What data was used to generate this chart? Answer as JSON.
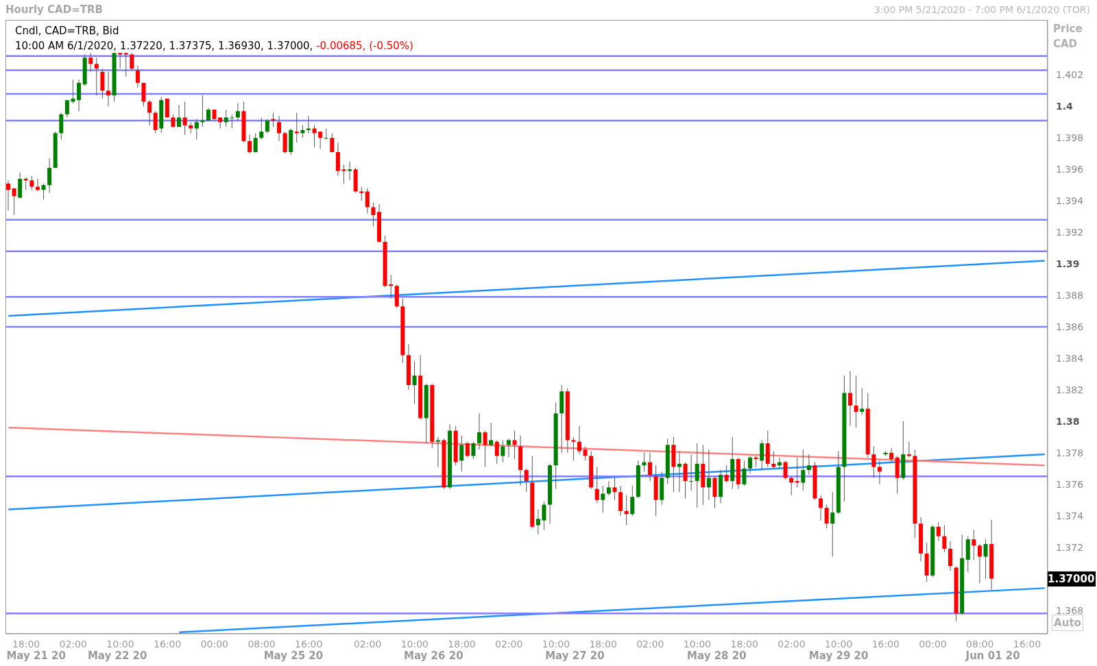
{
  "chart_data": {
    "type": "candlestick",
    "title": "Hourly CAD=TRB",
    "subtitle": "3:00 PM 5/21/2020 - 7:00 PM 6/1/2020 (TOR)",
    "ylabel": "Price CAD",
    "categories": [
      null,
      null,
      null,
      "18:00",
      null,
      null,
      null,
      null,
      null,
      null,
      null,
      "02:00",
      null,
      null,
      null,
      null,
      null,
      null,
      null,
      "10:00",
      null,
      null,
      null,
      null,
      null,
      null,
      null,
      "16:00",
      null,
      null,
      null,
      null,
      null,
      null,
      null,
      "00:00",
      null,
      null,
      null,
      null,
      null,
      null,
      null,
      "08:00",
      null,
      null,
      null,
      null,
      null,
      null,
      null,
      "16:00",
      null,
      null,
      null,
      null,
      null,
      null,
      null,
      null,
      null,
      "02:00",
      null,
      null,
      null,
      null,
      null,
      null,
      null,
      "10:00",
      null,
      null,
      null,
      null,
      null,
      null,
      null,
      "18:00",
      null,
      null,
      null,
      null,
      null,
      null,
      null,
      "02:00",
      null,
      null,
      null,
      null,
      null,
      null,
      null,
      "10:00",
      null,
      null,
      null,
      null,
      null,
      null,
      null,
      "18:00",
      null,
      null,
      null,
      null,
      null,
      null,
      null,
      "02:00",
      null,
      null,
      null,
      null,
      null,
      null,
      null,
      "10:00",
      null,
      null,
      null,
      null,
      null,
      null,
      null,
      "18:00",
      null,
      null,
      null,
      null,
      null,
      null,
      null,
      "02:00",
      null,
      null,
      null,
      null,
      null,
      null,
      null,
      "10:00",
      null,
      null,
      null,
      null,
      null,
      null,
      null,
      "16:00",
      null,
      null,
      null,
      null,
      null,
      null,
      null,
      "00:00",
      null,
      null,
      null,
      null,
      null,
      null,
      null,
      "08:00",
      null,
      null,
      null,
      null,
      null,
      null,
      null,
      "16:00",
      null,
      null,
      null
    ],
    "ohlc": [
      [
        1.3951,
        1.3953,
        1.3934,
        1.3947
      ],
      [
        1.3948,
        1.3948,
        1.3931,
        1.3943
      ],
      [
        1.3942,
        1.3958,
        1.3942,
        1.3954
      ],
      [
        1.3954,
        1.3955,
        1.3947,
        1.3953
      ],
      [
        1.3953,
        1.3956,
        1.3947,
        1.3949
      ],
      [
        1.3949,
        1.3954,
        1.3946,
        1.3947
      ],
      [
        1.3947,
        1.3951,
        1.3941,
        1.395
      ],
      [
        1.395,
        1.3967,
        1.3945,
        1.3961
      ],
      [
        1.3961,
        1.3984,
        1.3961,
        1.3983
      ],
      [
        1.3983,
        1.3996,
        1.3979,
        1.3995
      ],
      [
        1.3995,
        1.4004,
        1.3993,
        1.4004
      ],
      [
        1.4003,
        1.4017,
        1.4002,
        1.4005
      ],
      [
        1.4004,
        1.4017,
        1.3997,
        1.4015
      ],
      [
        1.4014,
        1.4033,
        1.4013,
        1.4031
      ],
      [
        1.4031,
        1.4034,
        1.4022,
        1.4027
      ],
      [
        1.4027,
        1.4031,
        1.4007,
        1.4024
      ],
      [
        1.4022,
        1.4024,
        1.4005,
        1.401
      ],
      [
        1.401,
        1.4022,
        1.4,
        1.4007
      ],
      [
        1.4007,
        1.4034,
        1.4003,
        1.4034
      ],
      [
        1.4034,
        1.4034,
        1.4024,
        1.4033
      ],
      [
        1.4034,
        1.4034,
        1.4019,
        1.4033
      ],
      [
        1.4033,
        1.4034,
        1.4023,
        1.4024
      ],
      [
        1.4023,
        1.4026,
        1.4012,
        1.4015
      ],
      [
        1.4015,
        1.4015,
        1.4,
        1.4003
      ],
      [
        1.4003,
        1.4004,
        1.3988,
        1.3996
      ],
      [
        1.3996,
        1.3997,
        1.3983,
        1.3985
      ],
      [
        1.3986,
        1.4006,
        1.3983,
        1.4004
      ],
      [
        1.4005,
        1.4005,
        1.3993,
        1.3993
      ],
      [
        1.3993,
        1.3995,
        1.3987,
        1.3987
      ],
      [
        1.3987,
        1.4001,
        1.3987,
        1.3993
      ],
      [
        1.3993,
        1.4003,
        1.3982,
        1.3988
      ],
      [
        1.3988,
        1.399,
        1.3983,
        1.3986
      ],
      [
        1.3986,
        1.3992,
        1.3979,
        1.399
      ],
      [
        1.399,
        1.4007,
        1.3987,
        1.3991
      ],
      [
        1.3991,
        1.3999,
        1.3991,
        1.3998
      ],
      [
        1.3998,
        1.3998,
        1.3991,
        1.3992
      ],
      [
        1.3993,
        1.3993,
        1.3986,
        1.399
      ],
      [
        1.399,
        1.3998,
        1.3987,
        1.3993
      ],
      [
        1.3993,
        1.3995,
        1.3986,
        1.3993
      ],
      [
        1.3993,
        1.4002,
        1.3991,
        1.3997
      ],
      [
        1.3997,
        1.4003,
        1.3977,
        1.3978
      ],
      [
        1.3978,
        1.3982,
        1.397,
        1.3971
      ],
      [
        1.3971,
        1.3983,
        1.3971,
        1.398
      ],
      [
        1.398,
        1.3993,
        1.3979,
        1.3984
      ],
      [
        1.3984,
        1.3992,
        1.3983,
        1.3991
      ],
      [
        1.3992,
        1.3996,
        1.3987,
        1.3991
      ],
      [
        1.399,
        1.3994,
        1.3978,
        1.3983
      ],
      [
        1.3983,
        1.3984,
        1.397,
        1.3971
      ],
      [
        1.3971,
        1.3986,
        1.3969,
        1.3985
      ],
      [
        1.3984,
        1.3996,
        1.3977,
        1.3983
      ],
      [
        1.3983,
        1.3988,
        1.398,
        1.3985
      ],
      [
        1.3985,
        1.3994,
        1.3983,
        1.3986
      ],
      [
        1.3986,
        1.3988,
        1.3974,
        1.3983
      ],
      [
        1.3984,
        1.3984,
        1.3973,
        1.398
      ],
      [
        1.398,
        1.3986,
        1.3979,
        1.398
      ],
      [
        1.398,
        1.3983,
        1.3971,
        1.3971
      ],
      [
        1.3971,
        1.3977,
        1.3956,
        1.3959
      ],
      [
        1.396,
        1.3963,
        1.3951,
        1.3959
      ],
      [
        1.3959,
        1.3965,
        1.3953,
        1.396
      ],
      [
        1.396,
        1.3961,
        1.3945,
        1.3946
      ],
      [
        1.3946,
        1.3949,
        1.394,
        1.3945
      ],
      [
        1.3946,
        1.3948,
        1.3932,
        1.3936
      ],
      [
        1.3936,
        1.3939,
        1.3924,
        1.3931
      ],
      [
        1.3933,
        1.3938,
        1.3914,
        1.3914
      ],
      [
        1.3914,
        1.3918,
        1.3885,
        1.3886
      ],
      [
        1.3887,
        1.3893,
        1.3878,
        1.3886
      ],
      [
        1.3886,
        1.3887,
        1.3872,
        1.3873
      ],
      [
        1.3873,
        1.3878,
        1.3837,
        1.3842
      ],
      [
        1.3842,
        1.3849,
        1.382,
        1.3823
      ],
      [
        1.3823,
        1.3838,
        1.3811,
        1.3829
      ],
      [
        1.3829,
        1.3842,
        1.3801,
        1.3802
      ],
      [
        1.3802,
        1.3824,
        1.3786,
        1.3823
      ],
      [
        1.3823,
        1.3824,
        1.3783,
        1.3787
      ],
      [
        1.3787,
        1.379,
        1.3771,
        1.3788
      ],
      [
        1.3788,
        1.3789,
        1.3757,
        1.3758
      ],
      [
        1.3758,
        1.3798,
        1.3757,
        1.3794
      ],
      [
        1.3794,
        1.3797,
        1.3772,
        1.3774
      ],
      [
        1.3775,
        1.3791,
        1.3768,
        1.3785
      ],
      [
        1.3786,
        1.3787,
        1.3777,
        1.3778
      ],
      [
        1.3778,
        1.3787,
        1.3776,
        1.3786
      ],
      [
        1.3786,
        1.3805,
        1.3782,
        1.3793
      ],
      [
        1.3793,
        1.3794,
        1.3771,
        1.3785
      ],
      [
        1.3785,
        1.3799,
        1.3784,
        1.3788
      ],
      [
        1.3787,
        1.3788,
        1.3773,
        1.3778
      ],
      [
        1.3778,
        1.3788,
        1.3774,
        1.3784
      ],
      [
        1.3785,
        1.3789,
        1.3777,
        1.3788
      ],
      [
        1.3788,
        1.3794,
        1.3776,
        1.3785
      ],
      [
        1.3784,
        1.3791,
        1.3759,
        1.3769
      ],
      [
        1.3769,
        1.377,
        1.3755,
        1.3762
      ],
      [
        1.3761,
        1.3778,
        1.3732,
        1.3733
      ],
      [
        1.3734,
        1.3744,
        1.3728,
        1.3738
      ],
      [
        1.3737,
        1.3749,
        1.3731,
        1.3747
      ],
      [
        1.3747,
        1.3773,
        1.3735,
        1.3772
      ],
      [
        1.3772,
        1.3812,
        1.3757,
        1.3805
      ],
      [
        1.3805,
        1.3823,
        1.378,
        1.3819
      ],
      [
        1.3819,
        1.3821,
        1.378,
        1.3788
      ],
      [
        1.3788,
        1.379,
        1.3775,
        1.3787
      ],
      [
        1.3787,
        1.3797,
        1.3779,
        1.3781
      ],
      [
        1.3782,
        1.3784,
        1.3775,
        1.3778
      ],
      [
        1.3778,
        1.3781,
        1.3757,
        1.3758
      ],
      [
        1.3757,
        1.3771,
        1.3748,
        1.375
      ],
      [
        1.375,
        1.3759,
        1.3742,
        1.3754
      ],
      [
        1.3754,
        1.3762,
        1.3753,
        1.3758
      ],
      [
        1.3758,
        1.3764,
        1.375,
        1.3755
      ],
      [
        1.3755,
        1.3759,
        1.374,
        1.3743
      ],
      [
        1.3743,
        1.3753,
        1.3734,
        1.3741
      ],
      [
        1.3741,
        1.3759,
        1.374,
        1.3752
      ],
      [
        1.3752,
        1.3775,
        1.3751,
        1.3772
      ],
      [
        1.3772,
        1.378,
        1.3768,
        1.3774
      ],
      [
        1.3774,
        1.378,
        1.3762,
        1.3766
      ],
      [
        1.3765,
        1.3772,
        1.374,
        1.375
      ],
      [
        1.375,
        1.3768,
        1.3747,
        1.3764
      ],
      [
        1.3764,
        1.3789,
        1.376,
        1.3785
      ],
      [
        1.3785,
        1.379,
        1.3755,
        1.3771
      ],
      [
        1.3771,
        1.3781,
        1.3755,
        1.3773
      ],
      [
        1.3773,
        1.3774,
        1.3751,
        1.3762
      ],
      [
        1.3762,
        1.3779,
        1.3756,
        1.3762
      ],
      [
        1.3762,
        1.3786,
        1.3745,
        1.3773
      ],
      [
        1.3773,
        1.3785,
        1.3747,
        1.3758
      ],
      [
        1.3758,
        1.3782,
        1.375,
        1.3764
      ],
      [
        1.3764,
        1.3765,
        1.3745,
        1.3752
      ],
      [
        1.3752,
        1.3769,
        1.3748,
        1.3766
      ],
      [
        1.3766,
        1.3772,
        1.3761,
        1.3762
      ],
      [
        1.3762,
        1.379,
        1.3757,
        1.3776
      ],
      [
        1.3776,
        1.3777,
        1.3757,
        1.376
      ],
      [
        1.376,
        1.3775,
        1.3759,
        1.377
      ],
      [
        1.377,
        1.3778,
        1.3767,
        1.3777
      ],
      [
        1.3777,
        1.3778,
        1.3771,
        1.3776
      ],
      [
        1.3775,
        1.3788,
        1.3769,
        1.3786
      ],
      [
        1.3786,
        1.3794,
        1.3771,
        1.3773
      ],
      [
        1.3773,
        1.3781,
        1.377,
        1.3771
      ],
      [
        1.3772,
        1.3777,
        1.377,
        1.3774
      ],
      [
        1.3774,
        1.3775,
        1.3763,
        1.3764
      ],
      [
        1.3764,
        1.3765,
        1.3753,
        1.3761
      ],
      [
        1.3762,
        1.3777,
        1.3758,
        1.3761
      ],
      [
        1.3761,
        1.3782,
        1.3756,
        1.3769
      ],
      [
        1.3769,
        1.3779,
        1.3766,
        1.3772
      ],
      [
        1.3772,
        1.3774,
        1.375,
        1.3751
      ],
      [
        1.3751,
        1.3753,
        1.3737,
        1.3745
      ],
      [
        1.3745,
        1.3747,
        1.3732,
        1.3735
      ],
      [
        1.3735,
        1.3755,
        1.3714,
        1.3742
      ],
      [
        1.3742,
        1.3781,
        1.3741,
        1.3771
      ],
      [
        1.3771,
        1.3829,
        1.3749,
        1.3818
      ],
      [
        1.3818,
        1.3832,
        1.3797,
        1.381
      ],
      [
        1.381,
        1.3829,
        1.3796,
        1.3806
      ],
      [
        1.3806,
        1.3821,
        1.3804,
        1.3808
      ],
      [
        1.3808,
        1.3818,
        1.3777,
        1.3779
      ],
      [
        1.3779,
        1.3784,
        1.3764,
        1.3771
      ],
      [
        1.3771,
        1.3775,
        1.376,
        1.3768
      ],
      [
        1.3779,
        1.3781,
        1.3778,
        1.378
      ],
      [
        1.378,
        1.3783,
        1.3774,
        1.3776
      ],
      [
        1.3777,
        1.3778,
        1.3754,
        1.3764
      ],
      [
        1.3764,
        1.38,
        1.3763,
        1.3779
      ],
      [
        1.3779,
        1.3787,
        1.3777,
        1.3778
      ],
      [
        1.3778,
        1.3782,
        1.3726,
        1.3735
      ],
      [
        1.3735,
        1.3739,
        1.3711,
        1.3716
      ],
      [
        1.3716,
        1.3723,
        1.3698,
        1.3702
      ],
      [
        1.3702,
        1.3734,
        1.3701,
        1.3733
      ],
      [
        1.3733,
        1.3736,
        1.3724,
        1.3727
      ],
      [
        1.3727,
        1.3734,
        1.3717,
        1.3719
      ],
      [
        1.3719,
        1.3724,
        1.3705,
        1.3708
      ],
      [
        1.3707,
        1.3708,
        1.3673,
        1.3678
      ],
      [
        1.3678,
        1.3728,
        1.3677,
        1.3713
      ],
      [
        1.3712,
        1.3727,
        1.3704,
        1.3725
      ],
      [
        1.3725,
        1.3731,
        1.3712,
        1.3721
      ],
      [
        1.3721,
        1.3722,
        1.3697,
        1.3714
      ],
      [
        1.3714,
        1.3725,
        1.37,
        1.3722
      ],
      [
        1.3722,
        1.37375,
        1.3693,
        1.37
      ],
      null,
      null,
      null,
      null,
      null,
      null,
      null,
      null,
      null
    ],
    "series": [
      {
        "type": "line",
        "color": "#1e90ff",
        "values": [
          1.3867,
          null,
          null,
          null,
          null,
          null,
          null,
          null,
          null,
          null,
          null,
          null,
          null,
          null,
          null,
          null,
          null,
          null,
          null,
          null,
          null,
          null,
          null,
          null,
          null,
          null,
          null,
          null,
          null,
          null,
          null,
          null,
          null,
          null,
          null,
          null,
          null,
          null,
          null,
          null,
          null,
          null,
          null,
          null,
          null,
          null,
          null,
          null,
          null,
          null,
          null,
          null,
          null,
          null,
          null,
          null,
          null,
          null,
          null,
          null,
          null,
          null,
          null,
          null,
          null,
          null,
          null,
          null,
          null,
          null,
          null,
          null,
          null,
          null,
          null,
          null,
          null,
          null,
          null,
          null,
          null,
          null,
          null,
          null,
          null,
          null,
          null,
          null,
          null,
          null,
          null,
          null,
          null,
          null,
          null,
          null,
          null,
          null,
          null,
          null,
          null,
          null,
          null,
          null,
          null,
          null,
          null,
          null,
          null,
          null,
          null,
          null,
          null,
          null,
          null,
          null,
          null,
          null,
          null,
          null,
          null,
          null,
          null,
          null,
          null,
          null,
          null,
          null,
          null,
          null,
          null,
          null,
          null,
          null,
          null,
          null,
          null,
          null,
          null,
          null,
          null,
          null,
          null,
          null,
          null,
          null,
          null,
          null,
          null,
          null,
          null,
          null,
          null,
          null,
          null,
          null,
          null,
          null,
          null,
          null,
          null,
          null,
          null,
          null,
          null,
          null,
          null,
          null,
          null,
          null,
          null,
          null,
          null,
          null,
          null,
          null,
          1.3902
        ]
      },
      {
        "type": "line",
        "color": "#1e90ff",
        "values": [
          1.3744,
          null,
          null,
          null,
          null,
          null,
          null,
          null,
          null,
          null,
          null,
          null,
          null,
          null,
          null,
          null,
          null,
          null,
          null,
          null,
          null,
          null,
          null,
          null,
          null,
          null,
          null,
          null,
          null,
          null,
          null,
          null,
          null,
          null,
          null,
          null,
          null,
          null,
          null,
          null,
          null,
          null,
          null,
          null,
          null,
          null,
          null,
          null,
          null,
          null,
          null,
          null,
          null,
          null,
          null,
          null,
          null,
          null,
          null,
          null,
          null,
          null,
          null,
          null,
          null,
          null,
          null,
          null,
          null,
          null,
          null,
          null,
          null,
          null,
          null,
          null,
          null,
          null,
          null,
          null,
          null,
          null,
          null,
          null,
          null,
          null,
          null,
          null,
          null,
          null,
          null,
          null,
          null,
          null,
          null,
          null,
          null,
          null,
          null,
          null,
          null,
          null,
          null,
          null,
          null,
          null,
          null,
          null,
          null,
          null,
          null,
          null,
          null,
          null,
          null,
          null,
          null,
          null,
          null,
          null,
          null,
          null,
          null,
          null,
          null,
          null,
          null,
          null,
          null,
          null,
          null,
          null,
          null,
          null,
          null,
          null,
          null,
          null,
          null,
          null,
          null,
          null,
          null,
          null,
          null,
          null,
          null,
          null,
          null,
          null,
          null,
          null,
          null,
          null,
          null,
          null,
          null,
          null,
          null,
          null,
          null,
          null,
          null,
          null,
          null,
          null,
          null,
          null,
          null,
          null,
          null,
          null,
          null,
          null,
          null,
          null,
          1.3779
        ]
      },
      {
        "type": "line",
        "color": "#1e90ff",
        "values": [
          null,
          null,
          null,
          null,
          null,
          null,
          null,
          null,
          null,
          null,
          null,
          null,
          null,
          null,
          null,
          null,
          null,
          null,
          null,
          null,
          null,
          null,
          null,
          null,
          null,
          null,
          null,
          null,
          null,
          1.3666,
          null,
          null,
          null,
          null,
          null,
          null,
          null,
          null,
          null,
          null,
          null,
          null,
          null,
          null,
          null,
          null,
          null,
          null,
          null,
          null,
          null,
          null,
          null,
          null,
          null,
          null,
          null,
          null,
          null,
          null,
          null,
          null,
          null,
          null,
          null,
          null,
          null,
          null,
          null,
          null,
          null,
          null,
          null,
          null,
          null,
          null,
          null,
          null,
          null,
          null,
          null,
          null,
          null,
          null,
          null,
          null,
          null,
          null,
          null,
          null,
          null,
          null,
          null,
          null,
          null,
          null,
          null,
          null,
          null,
          null,
          null,
          null,
          null,
          null,
          null,
          null,
          null,
          null,
          null,
          null,
          null,
          null,
          null,
          null,
          null,
          null,
          null,
          null,
          null,
          null,
          null,
          null,
          null,
          null,
          null,
          null,
          null,
          null,
          null,
          null,
          null,
          null,
          null,
          null,
          null,
          null,
          null,
          null,
          null,
          null,
          null,
          null,
          null,
          null,
          null,
          null,
          null,
          null,
          null,
          null,
          null,
          null,
          null,
          null,
          null,
          null,
          null,
          null,
          null,
          null,
          null,
          null,
          null,
          null,
          null,
          null,
          null,
          null,
          null,
          null,
          null,
          null,
          null,
          null,
          null,
          null,
          1.3694
        ]
      },
      {
        "type": "line",
        "color": "#ff8080",
        "values": [
          1.3796,
          null,
          null,
          null,
          null,
          null,
          null,
          null,
          null,
          null,
          null,
          null,
          null,
          null,
          null,
          null,
          null,
          null,
          null,
          null,
          null,
          null,
          null,
          null,
          null,
          null,
          null,
          null,
          null,
          null,
          null,
          null,
          null,
          null,
          null,
          null,
          null,
          null,
          null,
          null,
          null,
          null,
          null,
          null,
          null,
          null,
          null,
          null,
          null,
          null,
          null,
          null,
          null,
          null,
          null,
          null,
          null,
          null,
          null,
          null,
          null,
          null,
          null,
          null,
          null,
          null,
          null,
          null,
          null,
          null,
          null,
          null,
          null,
          null,
          null,
          null,
          null,
          null,
          null,
          null,
          null,
          null,
          null,
          null,
          null,
          null,
          null,
          null,
          null,
          null,
          null,
          null,
          null,
          null,
          null,
          null,
          null,
          null,
          null,
          null,
          null,
          null,
          null,
          null,
          null,
          null,
          null,
          null,
          null,
          null,
          null,
          null,
          null,
          null,
          null,
          null,
          null,
          null,
          null,
          null,
          null,
          null,
          null,
          null,
          null,
          null,
          null,
          null,
          null,
          null,
          null,
          null,
          null,
          null,
          null,
          null,
          null,
          null,
          null,
          null,
          null,
          null,
          null,
          null,
          null,
          null,
          null,
          null,
          null,
          null,
          null,
          null,
          null,
          null,
          null,
          null,
          null,
          null,
          null,
          null,
          null,
          null,
          null,
          null,
          null,
          null,
          null,
          null,
          null,
          null,
          null,
          null,
          null,
          null,
          null,
          null,
          1.3772
        ]
      }
    ],
    "ylim": [
      1.3665,
      1.4055
    ],
    "yticks": [
      1.368,
      1.372,
      1.374,
      1.376,
      1.378,
      1.38,
      1.382,
      1.384,
      1.386,
      1.388,
      1.39,
      1.392,
      1.394,
      1.396,
      1.398,
      1.4,
      1.402
    ],
    "ref_lines": [
      {
        "axis": "y",
        "value": 1.4032,
        "color": "#8080ff"
      },
      {
        "axis": "y",
        "value": 1.4023,
        "color": "#8080ff"
      },
      {
        "axis": "y",
        "value": 1.4008,
        "color": "#8080ff"
      },
      {
        "axis": "y",
        "value": 1.3991,
        "color": "#8080ff"
      },
      {
        "axis": "y",
        "value": 1.3928,
        "color": "#8080ff"
      },
      {
        "axis": "y",
        "value": 1.3908,
        "color": "#8080ff"
      },
      {
        "axis": "y",
        "value": 1.3879,
        "color": "#8080ff"
      },
      {
        "axis": "y",
        "value": 1.386,
        "color": "#8080ff"
      },
      {
        "axis": "y",
        "value": 1.3765,
        "color": "#8080ff"
      },
      {
        "axis": "y",
        "value": 1.3678,
        "color": "#8080ff"
      }
    ],
    "annotations": [
      "Cndl, CAD=TRB, Bid",
      "10:00 AM 6/1/2020, 1.37220, 1.37375, 1.36930, 1.37000,",
      "-0.00685, (-0.50%)",
      "1.37000",
      "Auto",
      "May 21 20",
      "May 22 20",
      "May 25 20",
      "May 26 20",
      "May 27 20",
      "May 28 20",
      "May 29 20",
      "Jun 01 20"
    ]
  }
}
